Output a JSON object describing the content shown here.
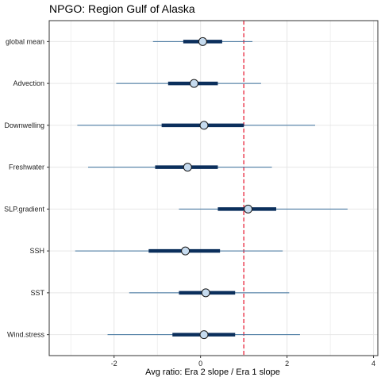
{
  "chart_data": {
    "type": "forest",
    "title": "NPGO: Region Gulf of Alaska",
    "xlabel": "Avg ratio: Era 2 slope / Era 1 slope",
    "ylabel": "",
    "xlim": [
      -3.5,
      4.1
    ],
    "x_ticks": [
      -2,
      0,
      2,
      4
    ],
    "x_tick_labels": [
      "-2",
      "0",
      "2",
      "4"
    ],
    "reference_line": 1,
    "grid": true,
    "colors": {
      "interval_outer": "#3a6f9a",
      "interval_inner": "#0b2f5c",
      "point_fill": "#c6dbef",
      "point_stroke": "#1a1a1a",
      "reference": "#e8233a",
      "grid": "#e6e6e6",
      "panel_border": "#333333"
    },
    "categories": [
      "global mean",
      "Advection",
      "Downwelling",
      "Freshwater",
      "SLP.gradient",
      "SSH",
      "SST",
      "Wind.stress"
    ],
    "series": [
      {
        "point": [
          0.05,
          -0.15,
          0.08,
          -0.3,
          1.1,
          -0.35,
          0.12,
          0.08
        ],
        "inner_low": [
          -0.4,
          -0.75,
          -0.9,
          -1.05,
          0.4,
          -1.2,
          -0.5,
          -0.65
        ],
        "inner_high": [
          0.5,
          0.4,
          1.0,
          0.4,
          1.75,
          0.45,
          0.8,
          0.8
        ],
        "outer_low": [
          -1.1,
          -1.95,
          -2.85,
          -2.6,
          -0.5,
          -2.9,
          -1.65,
          -2.15
        ],
        "outer_high": [
          1.2,
          1.4,
          2.65,
          1.65,
          3.4,
          1.9,
          2.05,
          2.3
        ]
      }
    ]
  }
}
